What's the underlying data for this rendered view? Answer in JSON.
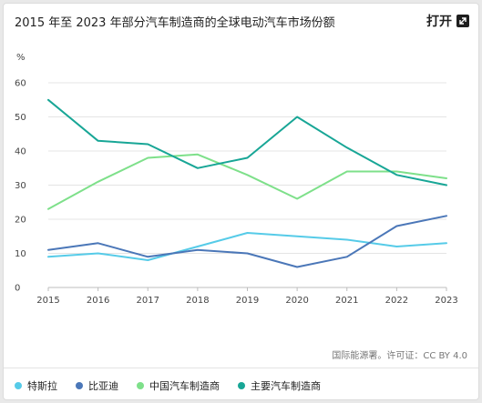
{
  "header": {
    "title": "2015 年至 2023 年部分汽车制造商的全球电动汽车市场份额",
    "open_label": "打开",
    "open_icon": "expand-arrow-icon"
  },
  "source": "国际能源署。许可证：CC BY 4.0",
  "chart_data": {
    "type": "line",
    "ylabel": "%",
    "ylim": [
      0,
      60
    ],
    "yticks": [
      0,
      10,
      20,
      30,
      40,
      50,
      60
    ],
    "x": [
      "2015",
      "2016",
      "2017",
      "2018",
      "2019",
      "2020",
      "2021",
      "2022",
      "2023"
    ],
    "grid": true,
    "legend_position": "bottom",
    "series": [
      {
        "name": "特斯拉",
        "color": "#56cbe8",
        "values": [
          9,
          10,
          8,
          12,
          16,
          15,
          14,
          12,
          13
        ]
      },
      {
        "name": "比亚迪",
        "color": "#4b77b8",
        "values": [
          11,
          13,
          9,
          11,
          10,
          6,
          9,
          18,
          21
        ]
      },
      {
        "name": "中国汽车制造商",
        "color": "#7ee08a",
        "values": [
          23,
          31,
          38,
          39,
          33,
          26,
          34,
          34,
          32
        ]
      },
      {
        "name": "主要汽车制造商",
        "color": "#18a696",
        "values": [
          55,
          43,
          42,
          35,
          38,
          50,
          41,
          33,
          30
        ]
      }
    ]
  }
}
